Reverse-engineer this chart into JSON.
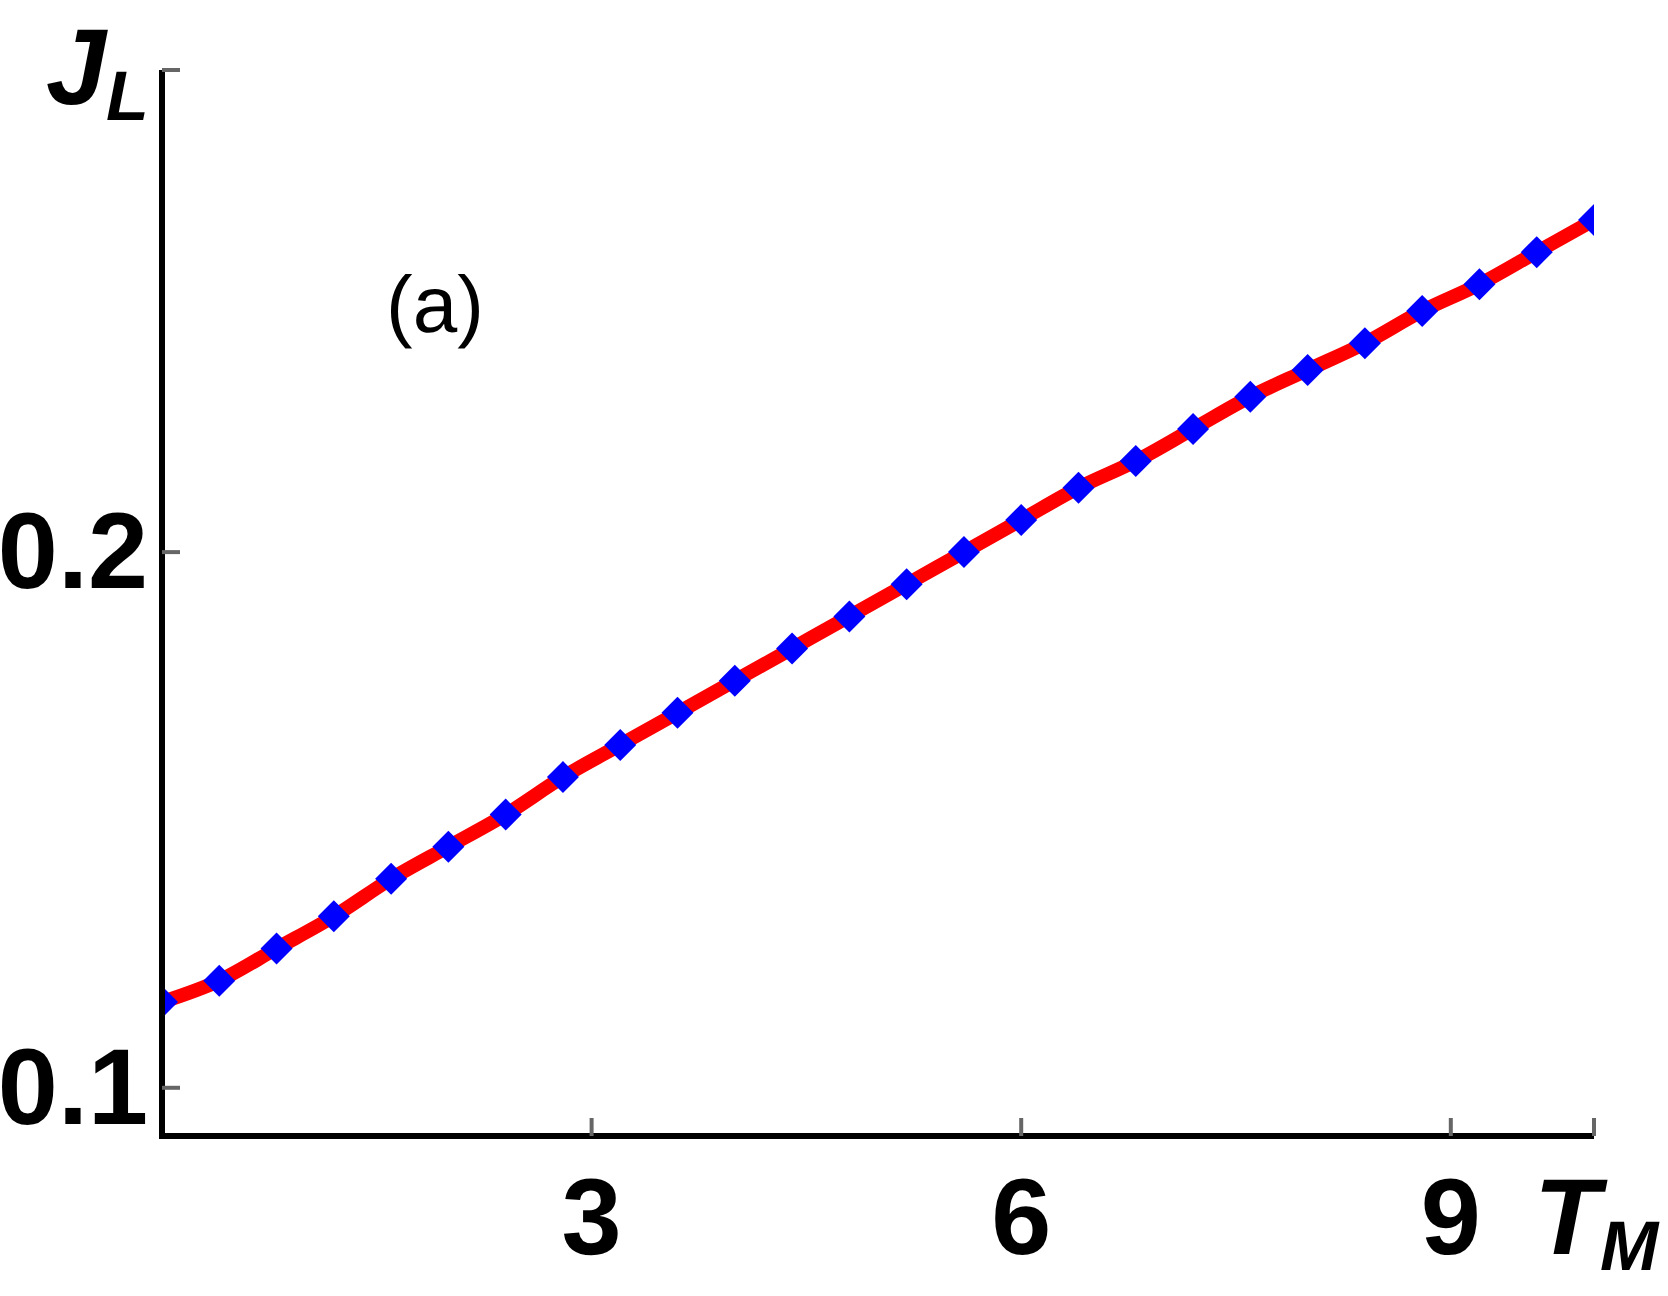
{
  "chart_data": {
    "type": "line",
    "xlabel": "T$_{M}$",
    "ylabel": "J$_{L}$",
    "annotations": [
      "(a)"
    ],
    "x": [
      0,
      0.4,
      0.8,
      1.2,
      1.6,
      2.0,
      2.4,
      2.8,
      3.2,
      3.6,
      4.0,
      4.4,
      4.8,
      5.2,
      5.6,
      6.0,
      6.4,
      6.8,
      7.2,
      7.6,
      8.0,
      8.4,
      8.8,
      9.2,
      9.6,
      10
    ],
    "series": [
      {
        "color": "#ff0000",
        "marker": "none",
        "line_style": "solid",
        "values": [
          0.116,
          0.12,
          0.126,
          0.132,
          0.139,
          0.145,
          0.151,
          0.158,
          0.164,
          0.17,
          0.176,
          0.182,
          0.188,
          0.194,
          0.2,
          0.206,
          0.212,
          0.217,
          0.223,
          0.229,
          0.234,
          0.239,
          0.245,
          0.25,
          0.256,
          0.262
        ]
      },
      {
        "type": "scatter",
        "color": "#0000ff",
        "marker": "diamond",
        "values": [
          0.116,
          0.12,
          0.126,
          0.132,
          0.139,
          0.145,
          0.151,
          0.158,
          0.164,
          0.17,
          0.176,
          0.182,
          0.188,
          0.194,
          0.2,
          0.206,
          0.212,
          0.217,
          0.223,
          0.229,
          0.234,
          0.239,
          0.245,
          0.25,
          0.256,
          0.262
        ]
      }
    ],
    "xlim": [
      0,
      10
    ],
    "xticks": [
      3,
      6,
      9,
      {
        "value": 10,
        "label": null
      }
    ],
    "ylim": [
      0.091,
      0.29
    ],
    "yticks": [
      0.1,
      0.2,
      {
        "value": 0.29,
        "label": null
      }
    ]
  }
}
